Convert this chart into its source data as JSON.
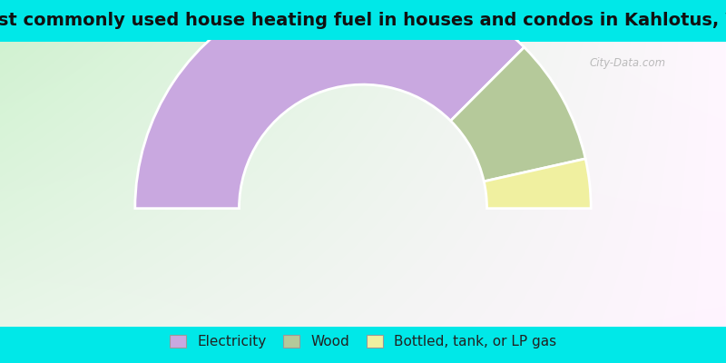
{
  "title": "Most commonly used house heating fuel in houses and condos in Kahlotus, WA",
  "segments": [
    {
      "label": "Electricity",
      "value": 75.0,
      "color": "#c9a8e0"
    },
    {
      "label": "Wood",
      "value": 18.0,
      "color": "#b5c99a"
    },
    {
      "label": "Bottled, tank, or LP gas",
      "value": 7.0,
      "color": "#f0f0a0"
    }
  ],
  "title_fontsize": 14,
  "legend_fontsize": 11,
  "watermark": "City-Data.com",
  "cyan_color": "#00e8e8",
  "title_bar_height": 0.115,
  "legend_bar_height": 0.1
}
